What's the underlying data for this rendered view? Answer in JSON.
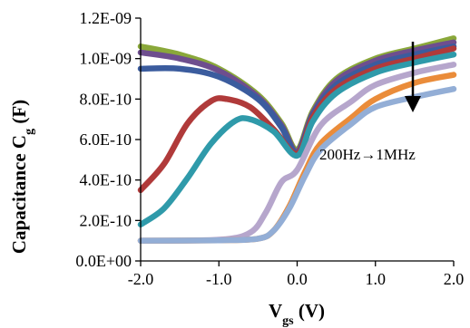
{
  "chart_data": {
    "type": "line",
    "xlabel": {
      "main": "V",
      "sub": "gs",
      "tail": " (V)"
    },
    "ylabel": {
      "main": "Capacitance C",
      "sub": "g",
      "tail": " (F)"
    },
    "xlim": [
      -2.0,
      2.0
    ],
    "ylim": [
      0,
      1.2e-09
    ],
    "x_ticks": [
      -2.0,
      -1.0,
      0.0,
      1.0,
      2.0
    ],
    "x_tick_labels": [
      "-2.0",
      "-1.0",
      "0.0",
      "1.0",
      "2.0"
    ],
    "y_ticks": [
      0,
      2e-10,
      4e-10,
      6e-10,
      8e-10,
      1e-09,
      1.2e-09
    ],
    "y_tick_labels": [
      "0.0E+00",
      "2.0E-10",
      "4.0E-10",
      "6.0E-10",
      "8.0E-10",
      "1.0E-09",
      "1.2E-09"
    ],
    "grid": false,
    "legend": "none",
    "annotation": "200Hz→1MHz",
    "series": [
      {
        "color": "#8aa83a",
        "points": [
          [
            -2.0,
            1.06e-09
          ],
          [
            -1.5,
            1.02e-09
          ],
          [
            -1.0,
            9.5e-10
          ],
          [
            -0.5,
            8.2e-10
          ],
          [
            -0.2,
            6.8e-10
          ],
          [
            0.0,
            5.5e-10
          ],
          [
            0.2,
            7.4e-10
          ],
          [
            0.5,
            9e-10
          ],
          [
            1.0,
            1e-09
          ],
          [
            1.5,
            1.05e-09
          ],
          [
            2.0,
            1.1e-09
          ]
        ]
      },
      {
        "color": "#6e4e8e",
        "points": [
          [
            -2.0,
            1.03e-09
          ],
          [
            -1.5,
            1e-09
          ],
          [
            -1.0,
            9.4e-10
          ],
          [
            -0.5,
            8.1e-10
          ],
          [
            -0.2,
            6.7e-10
          ],
          [
            0.0,
            5.4e-10
          ],
          [
            0.2,
            7.3e-10
          ],
          [
            0.5,
            8.9e-10
          ],
          [
            1.0,
            9.9e-10
          ],
          [
            1.5,
            1.04e-09
          ],
          [
            2.0,
            1.08e-09
          ]
        ]
      },
      {
        "color": "#3b5c9e",
        "points": [
          [
            -2.0,
            9.5e-10
          ],
          [
            -1.5,
            9.5e-10
          ],
          [
            -1.0,
            9.1e-10
          ],
          [
            -0.5,
            8e-10
          ],
          [
            -0.2,
            6.6e-10
          ],
          [
            0.0,
            5.3e-10
          ],
          [
            0.2,
            7.2e-10
          ],
          [
            0.5,
            8.7e-10
          ],
          [
            1.0,
            9.7e-10
          ],
          [
            1.5,
            1.02e-09
          ],
          [
            2.0,
            1.06e-09
          ]
        ]
      },
      {
        "color": "#b03a3a",
        "points": [
          [
            -2.0,
            3.5e-10
          ],
          [
            -1.7,
            4.8e-10
          ],
          [
            -1.4,
            6.8e-10
          ],
          [
            -1.1,
            7.9e-10
          ],
          [
            -0.9,
            8e-10
          ],
          [
            -0.6,
            7.6e-10
          ],
          [
            -0.3,
            6.5e-10
          ],
          [
            0.0,
            5.3e-10
          ],
          [
            0.2,
            7.1e-10
          ],
          [
            0.5,
            8.5e-10
          ],
          [
            1.0,
            9.5e-10
          ],
          [
            1.5,
            1e-09
          ],
          [
            2.0,
            1.05e-09
          ]
        ]
      },
      {
        "color": "#2f9aaa",
        "points": [
          [
            -2.0,
            1.8e-10
          ],
          [
            -1.7,
            2.6e-10
          ],
          [
            -1.4,
            4.1e-10
          ],
          [
            -1.1,
            5.8e-10
          ],
          [
            -0.8,
            6.9e-10
          ],
          [
            -0.6,
            7e-10
          ],
          [
            -0.3,
            6.4e-10
          ],
          [
            0.0,
            5.2e-10
          ],
          [
            0.2,
            6.9e-10
          ],
          [
            0.5,
            8.3e-10
          ],
          [
            1.0,
            9.3e-10
          ],
          [
            1.5,
            9.8e-10
          ],
          [
            2.0,
            1.02e-09
          ]
        ]
      },
      {
        "color": "#b6a6cc",
        "points": [
          [
            -2.0,
            1e-10
          ],
          [
            -1.0,
            1.05e-10
          ],
          [
            -0.6,
            1.4e-10
          ],
          [
            -0.4,
            2.4e-10
          ],
          [
            -0.2,
            3.9e-10
          ],
          [
            0.0,
            4.5e-10
          ],
          [
            0.3,
            6.7e-10
          ],
          [
            0.7,
            7.9e-10
          ],
          [
            1.0,
            8.7e-10
          ],
          [
            1.5,
            9.3e-10
          ],
          [
            2.0,
            9.7e-10
          ]
        ]
      },
      {
        "color": "#ea8c3a",
        "points": [
          [
            -2.0,
            1e-10
          ],
          [
            -1.0,
            1.02e-10
          ],
          [
            -0.5,
            1.1e-10
          ],
          [
            -0.3,
            1.5e-10
          ],
          [
            -0.1,
            2.7e-10
          ],
          [
            0.1,
            4.4e-10
          ],
          [
            0.3,
            5.8e-10
          ],
          [
            0.7,
            7.1e-10
          ],
          [
            1.0,
            8e-10
          ],
          [
            1.5,
            8.8e-10
          ],
          [
            2.0,
            9.2e-10
          ]
        ]
      },
      {
        "color": "#93aed6",
        "points": [
          [
            -2.0,
            1e-10
          ],
          [
            -1.0,
            1.02e-10
          ],
          [
            -0.5,
            1.1e-10
          ],
          [
            -0.3,
            1.5e-10
          ],
          [
            -0.1,
            2.6e-10
          ],
          [
            0.1,
            4.2e-10
          ],
          [
            0.3,
            5.5e-10
          ],
          [
            0.7,
            6.8e-10
          ],
          [
            1.0,
            7.6e-10
          ],
          [
            1.5,
            8.1e-10
          ],
          [
            2.0,
            8.5e-10
          ]
        ]
      }
    ]
  }
}
